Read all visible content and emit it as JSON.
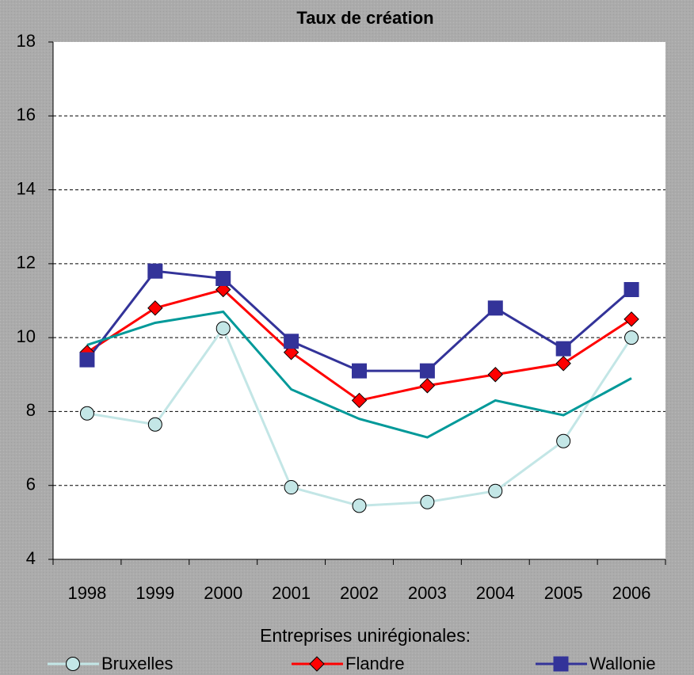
{
  "chart_data": {
    "type": "line",
    "title": "Taux de création",
    "categories": [
      "1998",
      "1999",
      "2000",
      "2001",
      "2002",
      "2003",
      "2004",
      "2005",
      "2006"
    ],
    "series": [
      {
        "name": "Bruxelles",
        "color": "#c3e6e6",
        "marker": "circle",
        "values": [
          7.95,
          7.65,
          10.25,
          5.95,
          5.45,
          5.55,
          5.85,
          7.2,
          10.0
        ]
      },
      {
        "name": "Flandre",
        "color": "#ff0000",
        "marker": "diamond",
        "values": [
          9.6,
          10.8,
          11.3,
          9.6,
          8.3,
          8.7,
          9.0,
          9.3,
          10.5
        ]
      },
      {
        "name": "Wallonie",
        "color": "#333399",
        "marker": "square",
        "values": [
          9.4,
          11.8,
          11.6,
          9.9,
          9.1,
          9.1,
          10.8,
          9.7,
          11.3
        ]
      },
      {
        "color": "#009999",
        "marker": "none",
        "values": [
          9.8,
          10.4,
          10.7,
          8.6,
          7.8,
          7.3,
          8.3,
          7.9,
          8.9
        ]
      }
    ],
    "legend_title": "Entreprises unirégionales:",
    "ylim": [
      4,
      18
    ],
    "yticks": [
      4,
      6,
      8,
      10,
      12,
      14,
      16,
      18
    ],
    "grid": true
  }
}
